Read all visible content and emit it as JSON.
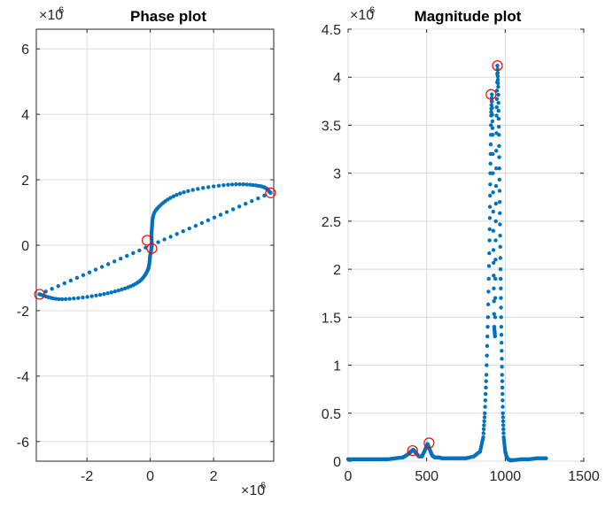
{
  "colors": {
    "series": "#0072BD",
    "highlight": "#ff0000",
    "grid": "#dcdcdc",
    "axis": "#262626"
  },
  "chart_data": [
    {
      "type": "scatter",
      "title": "Phase plot",
      "xlim": [
        -3.6,
        3.9
      ],
      "ylim": [
        -6.6,
        6.6
      ],
      "x_exponent_label": "×10",
      "x_exponent_power": "6",
      "y_exponent_label": "×10",
      "y_exponent_power": "6",
      "xticks": [
        -2,
        0,
        2
      ],
      "xtick_labels": [
        "-2",
        "0",
        "2"
      ],
      "yticks": [
        -6,
        -4,
        -2,
        0,
        2,
        4,
        6
      ],
      "ytick_labels": [
        "-6",
        "-4",
        "-2",
        "0",
        "2",
        "4",
        "6"
      ],
      "grid": true,
      "series": [
        {
          "marker": "dot",
          "segments": [
            {
              "from": [
                -3.5,
                -1.5
              ],
              "to": [
                3.8,
                1.6
              ],
              "points": 38
            },
            {
              "curve": [
                [
                  -3.5,
                  -1.5
                ],
                [
                  -2.8,
                  -1.65
                ],
                [
                  -1.5,
                  -1.5
                ],
                [
                  -0.5,
                  -1.2
                ],
                [
                  -0.1,
                  -0.8
                ],
                [
                  0.0,
                  -0.3
                ],
                [
                  0.05,
                  0.0
                ]
              ],
              "points": 60
            },
            {
              "curve": [
                [
                  0.05,
                  0.0
                ],
                [
                  0.05,
                  0.5
                ],
                [
                  0.2,
                  1.1
                ],
                [
                  1.0,
                  1.6
                ],
                [
                  2.5,
                  1.85
                ],
                [
                  3.5,
                  1.8
                ],
                [
                  3.8,
                  1.6
                ]
              ],
              "points": 60
            }
          ]
        }
      ],
      "highlighted_points": [
        [
          -3.5,
          -1.5
        ],
        [
          3.8,
          1.6
        ],
        [
          -0.1,
          0.15
        ],
        [
          0.05,
          -0.1
        ]
      ]
    },
    {
      "type": "scatter",
      "title": "Magnitude plot",
      "xlim": [
        0,
        1500
      ],
      "ylim": [
        0,
        4.5
      ],
      "y_exponent_label": "×10",
      "y_exponent_power": "6",
      "xticks": [
        0,
        500,
        1000,
        1500
      ],
      "xtick_labels": [
        "0",
        "500",
        "1000",
        "1500"
      ],
      "yticks": [
        0,
        0.5,
        1,
        1.5,
        2,
        2.5,
        3,
        3.5,
        4,
        4.5
      ],
      "ytick_labels": [
        "0",
        "0.5",
        "1",
        "1.5",
        "2",
        "2.5",
        "3",
        "3.5",
        "4",
        "4.5"
      ],
      "grid": true,
      "series": [
        {
          "marker": "dot",
          "x": [
            0,
            50,
            100,
            150,
            200,
            250,
            300,
            350,
            380,
            400,
            415,
            430,
            450,
            470,
            490,
            505,
            520,
            535,
            550,
            575,
            600,
            650,
            700,
            750,
            800,
            840,
            860,
            870,
            880,
            890,
            900,
            905,
            910,
            915,
            920,
            925,
            930,
            935,
            940,
            945,
            950,
            955,
            960,
            965,
            970,
            975,
            980,
            985,
            990,
            1000,
            1010,
            1020,
            1030,
            1040,
            1050,
            1100,
            1150,
            1200,
            1260
          ],
          "y": [
            0.02,
            0.02,
            0.02,
            0.02,
            0.02,
            0.02,
            0.03,
            0.04,
            0.07,
            0.1,
            0.12,
            0.09,
            0.05,
            0.05,
            0.12,
            0.18,
            0.12,
            0.06,
            0.04,
            0.04,
            0.03,
            0.03,
            0.03,
            0.03,
            0.05,
            0.1,
            0.25,
            0.5,
            0.9,
            1.5,
            2.3,
            3.0,
            3.6,
            3.82,
            3.4,
            2.2,
            1.4,
            1.3,
            2.5,
            3.6,
            4.12,
            3.9,
            3.4,
            2.7,
            2.0,
            1.4,
            0.9,
            0.5,
            0.25,
            0.1,
            0.04,
            0.02,
            0.01,
            0.01,
            0.01,
            0.02,
            0.02,
            0.03,
            0.03
          ]
        }
      ],
      "highlighted_points": [
        [
          410,
          0.11
        ],
        [
          515,
          0.19
        ],
        [
          910,
          3.82
        ],
        [
          950,
          4.12
        ]
      ]
    }
  ]
}
